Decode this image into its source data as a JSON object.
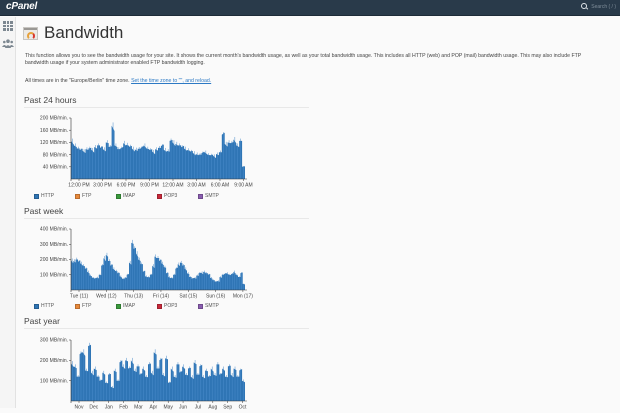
{
  "topbar": {
    "logo": "cPanel",
    "search_placeholder": "Search ( / )"
  },
  "sidebar": {
    "items": [
      {
        "name": "apps-grid",
        "icon": "grid-icon"
      },
      {
        "name": "users",
        "icon": "users-icon"
      }
    ]
  },
  "page": {
    "title": "Bandwidth",
    "description": "This function allows you to see the bandwidth usage for your site. It shows the current month's bandwidth usage, as well as your total bandwidth usage. This includes all HTTP (web) and POP (mail) bandwidth usage. This may also include FTP bandwidth usage if your system administrator enabled FTP bandwidth logging.",
    "timezone_text": "All times are in the \"Europe/Berlin\" time zone.",
    "timezone_link": "Set the time zone to \"\", and reload."
  },
  "legend": [
    {
      "label": "HTTP",
      "color": "#2f75b5"
    },
    {
      "label": "FTP",
      "color": "#e8893a"
    },
    {
      "label": "IMAP",
      "color": "#3a9a3c"
    },
    {
      "label": "POP3",
      "color": "#c9283a"
    },
    {
      "label": "SMTP",
      "color": "#8a5db0"
    }
  ],
  "chart_data": [
    {
      "type": "area",
      "title": "Past 24 hours",
      "ylabel": "MB/min.",
      "yticks": [
        "40 MB/min.",
        "80 MB/min.",
        "120 MB/min.",
        "160 MB/min.",
        "200 MB/min."
      ],
      "ylim": [
        0,
        200
      ],
      "xticks": [
        "12:00 PM",
        "3:00 PM",
        "6:00 PM",
        "9:00 PM",
        "12:00 AM",
        "3:00 AM",
        "6:00 AM",
        "9:00 AM"
      ],
      "series": [
        {
          "name": "HTTP",
          "values": [
            125,
            110,
            100,
            95,
            92,
            98,
            100,
            96,
            105,
            110,
            102,
            98,
            120,
            105,
            175,
            110,
            98,
            100,
            118,
            112,
            106,
            100,
            97,
            99,
            102,
            110,
            100,
            95,
            90,
            98,
            102,
            108,
            96,
            92,
            125,
            120,
            115,
            110,
            104,
            100,
            95,
            90,
            86,
            82,
            80,
            85,
            88,
            80,
            78,
            76,
            82,
            88,
            145,
            115,
            120,
            118,
            130,
            110,
            125,
            40
          ]
        },
        {
          "name": "FTP",
          "values": []
        },
        {
          "name": "IMAP",
          "values": []
        },
        {
          "name": "POP3",
          "values": []
        },
        {
          "name": "SMTP",
          "values": []
        }
      ]
    },
    {
      "type": "area",
      "title": "Past week",
      "ylabel": "MB/min.",
      "yticks": [
        "100 MB/min.",
        "200 MB/min.",
        "300 MB/min.",
        "400 MB/min."
      ],
      "ylim": [
        0,
        400
      ],
      "xticks": [
        "Tue (11)",
        "Wed (12)",
        "Thu (13)",
        "Fri (14)",
        "Sat (15)",
        "Sun (16)",
        "Mon (17)"
      ],
      "series": [
        {
          "name": "HTTP",
          "values": [
            195,
            190,
            200,
            185,
            175,
            160,
            140,
            120,
            95,
            80,
            75,
            82,
            100,
            160,
            210,
            230,
            190,
            160,
            140,
            125,
            110,
            90,
            75,
            80,
            100,
            180,
            310,
            270,
            240,
            200,
            170,
            120,
            90,
            85,
            100,
            160,
            220,
            210,
            190,
            175,
            150,
            110,
            85,
            80,
            100,
            140,
            170,
            180,
            160,
            140,
            110,
            85,
            75,
            80,
            95,
            110,
            115,
            120,
            110,
            100,
            80,
            65,
            55,
            60,
            85,
            100,
            105,
            110,
            100,
            105,
            120,
            100,
            85,
            110,
            40
          ]
        },
        {
          "name": "FTP",
          "values": []
        },
        {
          "name": "IMAP",
          "values": []
        },
        {
          "name": "POP3",
          "values": []
        },
        {
          "name": "SMTP",
          "values": []
        }
      ]
    },
    {
      "type": "area",
      "title": "Past year",
      "ylabel": "MB/min.",
      "yticks": [
        "100 MB/min.",
        "200 MB/min.",
        "300 MB/min."
      ],
      "ylim": [
        0,
        300
      ],
      "xticks": [
        "Nov",
        "Dec",
        "Jan",
        "Feb",
        "Mar",
        "Apr",
        "May",
        "Jun",
        "Jul",
        "Aug",
        "Sep",
        "Oct"
      ],
      "series": [
        {
          "name": "HTTP",
          "values": [
            185,
            170,
            120,
            230,
            240,
            150,
            270,
            140,
            160,
            120,
            100,
            140,
            90,
            130,
            70,
            150,
            100,
            190,
            170,
            200,
            160,
            200,
            150,
            170,
            130,
            160,
            120,
            180,
            140,
            240,
            160,
            200,
            130,
            210,
            90,
            160,
            120,
            180,
            140,
            170,
            130,
            160,
            120,
            190,
            130,
            170,
            120,
            150,
            120,
            160,
            130,
            180,
            130,
            160,
            120,
            170,
            130,
            160,
            120,
            150,
            100
          ]
        },
        {
          "name": "FTP",
          "values": []
        },
        {
          "name": "IMAP",
          "values": []
        },
        {
          "name": "POP3",
          "values": []
        },
        {
          "name": "SMTP",
          "values": []
        }
      ]
    }
  ]
}
